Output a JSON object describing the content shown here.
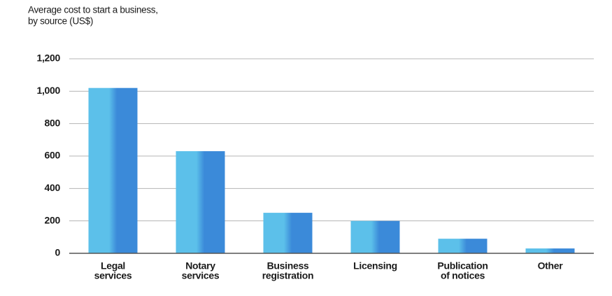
{
  "chart_data": {
    "type": "bar",
    "title": [
      "Average cost to start a business,",
      "by source (US$)"
    ],
    "categories": [
      [
        "Legal",
        "services"
      ],
      [
        "Notary",
        "services"
      ],
      [
        "Business",
        "registration"
      ],
      [
        "Licensing"
      ],
      [
        "Publication",
        "of notices"
      ],
      [
        "Other"
      ]
    ],
    "values": [
      1020,
      630,
      250,
      200,
      90,
      30
    ],
    "colors": [
      "#5cc0ea",
      "#3b8ad9"
    ],
    "ylim": [
      0,
      1200
    ],
    "yticks": [
      0,
      200,
      400,
      600,
      800,
      {
        "value": 1000,
        "label": "1,000"
      },
      {
        "value": 1200,
        "label": "1,200"
      }
    ],
    "grid": true
  }
}
